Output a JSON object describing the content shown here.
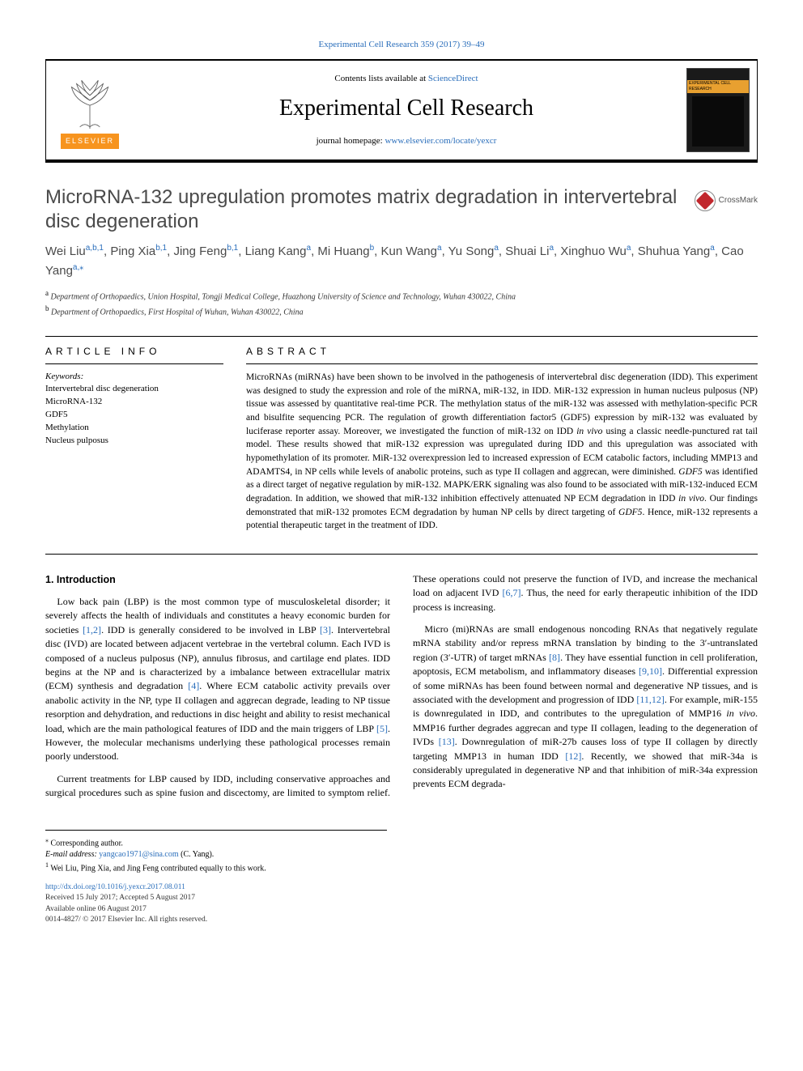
{
  "colors": {
    "link": "#2a6ebb",
    "text": "#000000",
    "title_gray": "#4a4a4a",
    "elsevier_orange": "#f7941e",
    "crossmark_red": "#c1272d",
    "background": "#ffffff"
  },
  "typography": {
    "body_font": "Georgia, 'Times New Roman', serif",
    "sans_font": "Arial, Helvetica, sans-serif",
    "title_fontsize_pt": 18,
    "journal_fontsize_pt": 21,
    "authors_fontsize_pt": 11,
    "body_fontsize_pt": 9,
    "abstract_fontsize_pt": 8.5,
    "footnote_fontsize_pt": 7.5
  },
  "top_citation": "Experimental Cell Research 359 (2017) 39–49",
  "header": {
    "contents_prefix": "Contents lists available at ",
    "contents_link": "ScienceDirect",
    "journal": "Experimental Cell Research",
    "homepage_prefix": "journal homepage: ",
    "homepage_url": "www.elsevier.com/locate/yexcr",
    "publisher_label": "ELSEVIER",
    "cover_band": "EXPERIMENTAL CELL RESEARCH"
  },
  "crossmark_label": "CrossMark",
  "title": "MicroRNA-132 upregulation promotes matrix degradation in intervertebral disc degeneration",
  "authors_html": "Wei Liu<sup>a,b,1</sup>, Ping Xia<sup>b,1</sup>, Jing Feng<sup>b,1</sup>, Liang Kang<sup>a</sup>, Mi Huang<sup>b</sup>, Kun Wang<sup>a</sup>, Yu Song<sup>a</sup>, Shuai Li<sup>a</sup>, Xinghuo Wu<sup>a</sup>, Shuhua Yang<sup>a</sup>, Cao Yang<sup>a,⁎</sup>",
  "affiliations": [
    {
      "tag": "a",
      "text": "Department of Orthopaedics, Union Hospital, Tongji Medical College, Huazhong University of Science and Technology, Wuhan 430022, China"
    },
    {
      "tag": "b",
      "text": "Department of Orthopaedics, First Hospital of Wuhan, Wuhan 430022, China"
    }
  ],
  "article_info": {
    "heading": "ARTICLE INFO",
    "keywords_label": "Keywords:",
    "keywords": [
      "Intervertebral disc degeneration",
      "MicroRNA-132",
      "GDF5",
      "Methylation",
      "Nucleus pulposus"
    ]
  },
  "abstract": {
    "heading": "ABSTRACT",
    "text": "MicroRNAs (miRNAs) have been shown to be involved in the pathogenesis of intervertebral disc degeneration (IDD). This experiment was designed to study the expression and role of the miRNA, miR-132, in IDD. MiR-132 expression in human nucleus pulposus (NP) tissue was assessed by quantitative real-time PCR. The methylation status of the miR-132 was assessed with methylation-specific PCR and bisulfite sequencing PCR. The regulation of growth differentiation factor5 (GDF5) expression by miR-132 was evaluated by luciferase reporter assay. Moreover, we investigated the function of miR-132 on IDD in vivo using a classic needle-punctured rat tail model. These results showed that miR-132 expression was upregulated during IDD and this upregulation was associated with hypomethylation of its promoter. MiR-132 overexpression led to increased expression of ECM catabolic factors, including MMP13 and ADAMTS4, in NP cells while levels of anabolic proteins, such as type II collagen and aggrecan, were diminished. GDF5 was identified as a direct target of negative regulation by miR-132. MAPK/ERK signaling was also found to be associated with miR-132-induced ECM degradation. In addition, we showed that miR-132 inhibition effectively attenuated NP ECM degradation in IDD in vivo. Our findings demonstrated that miR-132 promotes ECM degradation by human NP cells by direct targeting of GDF5. Hence, miR-132 represents a potential therapeutic target in the treatment of IDD."
  },
  "section_heading": "1. Introduction",
  "body_paragraphs": [
    "Low back pain (LBP) is the most common type of musculoskeletal disorder; it severely affects the health of individuals and constitutes a heavy economic burden for societies [1,2]. IDD is generally considered to be involved in LBP [3]. Intervertebral disc (IVD) are located between adjacent vertebrae in the vertebral column. Each IVD is composed of a nucleus pulposus (NP), annulus fibrosus, and cartilage end plates. IDD begins at the NP and is characterized by a imbalance between extracellular matrix (ECM) synthesis and degradation [4]. Where ECM catabolic activity prevails over anabolic activity in the NP, type II collagen and aggrecan degrade, leading to NP tissue resorption and dehydration, and reductions in disc height and ability to resist mechanical load, which are the main pathological features of IDD and the main triggers of LBP [5]. However, the molecular mechanisms underlying these pathological processes remain poorly understood.",
    "Current treatments for LBP caused by IDD, including conservative approaches and surgical procedures such as spine fusion and discectomy, are limited to symptom relief. These operations could not preserve the function of IVD, and increase the mechanical load on adjacent IVD [6,7]. Thus, the need for early therapeutic inhibition of the IDD process is increasing.",
    "Micro (mi)RNAs are small endogenous noncoding RNAs that negatively regulate mRNA stability and/or repress mRNA translation by binding to the 3′-untranslated region (3′-UTR) of target mRNAs [8]. They have essential function in cell proliferation, apoptosis, ECM metabolism, and inflammatory diseases [9,10]. Differential expression of some miRNAs has been found between normal and degenerative NP tissues, and is associated with the development and progression of IDD [11,12]. For example, miR-155 is downregulated in IDD, and contributes to the upregulation of MMP16 in vivo. MMP16 further degrades aggrecan and type II collagen, leading to the degeneration of IVDs [13]. Downregulation of miR-27b causes loss of type II collagen by directly targeting MMP13 in human IDD [12]. Recently, we showed that miR-34a is considerably upregulated in degenerative NP and that inhibition of miR-34a expression prevents ECM degrada-"
  ],
  "footnotes": {
    "corresponding": "Corresponding author.",
    "email_label": "E-mail address:",
    "email": "yangcao1971@sina.com",
    "email_suffix": "(C. Yang).",
    "equal": "Wei Liu, Ping Xia, and Jing Feng contributed equally to this work."
  },
  "footer": {
    "doi": "http://dx.doi.org/10.1016/j.yexcr.2017.08.011",
    "received": "Received 15 July 2017; Accepted 5 August 2017",
    "available": "Available online 06 August 2017",
    "copyright": "0014-4827/ © 2017 Elsevier Inc. All rights reserved."
  }
}
